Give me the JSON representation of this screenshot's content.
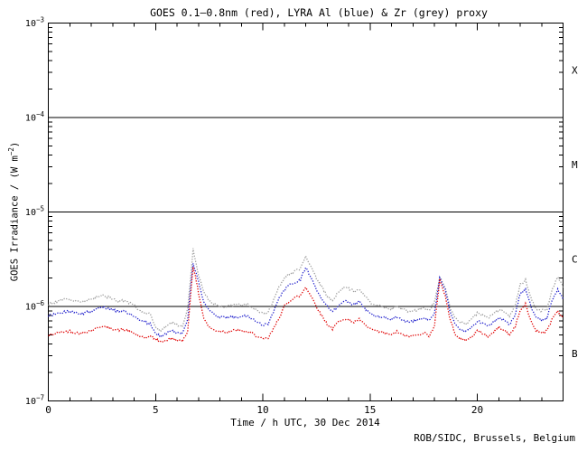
{
  "footer": "ROB/SIDC, Brussels, Belgium",
  "colors": {
    "background": "#ffffff",
    "axis": "#000000",
    "goes_red": "#e00000",
    "lyra_al_blue": "#2020cc",
    "lyra_zr_grey": "#9e9e9e"
  },
  "chart_data": {
    "type": "line",
    "title": "GOES 0.1–0.8nm (red), LYRA Al (blue) & Zr (grey) proxy",
    "xlabel": "Time / h UTC, 30 Dec 2014",
    "ylabel": "GOES Irradiance / (W m^-2)",
    "ylabel_parts": {
      "prefix": "GOES Irradiance / (W m",
      "sup": "−2",
      "suffix": ")"
    },
    "legend": "none (series colors described in title)",
    "grid": "off",
    "x_axis": {
      "min": 0,
      "max": 24,
      "major_ticks": [
        0,
        5,
        10,
        15,
        20
      ],
      "minor_step": 1,
      "unit": "h UTC"
    },
    "y_axis": {
      "scale": "log",
      "min": 1e-07,
      "max": 0.001,
      "tick_exponents": [
        -3,
        -4,
        -5,
        -6,
        -7
      ]
    },
    "hlines": [
      0.0001,
      1e-05,
      1e-06
    ],
    "flare_class_labels": [
      {
        "label": "X",
        "y_value": 0.000316
      },
      {
        "label": "M",
        "y_value": 3.16e-05
      },
      {
        "label": "C",
        "y_value": 3.16e-06
      },
      {
        "label": "B",
        "y_value": 3.16e-07
      }
    ],
    "x_start": 0,
    "x_step_hours": 0.25,
    "values_scale": 1e-07,
    "series": [
      {
        "id": "goes-xray-red",
        "name": "GOES 0.1-0.8nm",
        "color": "#e00000",
        "values": [
          4.9,
          5.1,
          5.3,
          5.4,
          5.5,
          5.3,
          5.2,
          5.4,
          5.6,
          5.9,
          6.2,
          6.0,
          5.8,
          5.6,
          5.7,
          5.5,
          5.2,
          4.8,
          4.6,
          4.9,
          4.5,
          4.2,
          4.4,
          4.6,
          4.4,
          4.3,
          5.5,
          27,
          14,
          7.5,
          6.0,
          5.6,
          5.5,
          5.4,
          5.5,
          5.6,
          5.5,
          5.4,
          5.2,
          4.8,
          4.5,
          4.6,
          5.8,
          7.5,
          10,
          11.5,
          12.5,
          13,
          16,
          13,
          10,
          8.0,
          6.5,
          5.8,
          6.8,
          7.4,
          7.2,
          6.8,
          7.3,
          6.4,
          5.8,
          5.5,
          5.3,
          5.2,
          5.0,
          5.4,
          5.0,
          4.8,
          4.9,
          5.0,
          5.3,
          4.9,
          6.0,
          19.5,
          13,
          7.0,
          5.0,
          4.5,
          4.4,
          4.8,
          5.5,
          5.2,
          4.8,
          5.3,
          6.0,
          5.6,
          5.0,
          6.0,
          9.0,
          10.5,
          7.0,
          5.5,
          5.3,
          5.5,
          7.5,
          9.0,
          7.5
        ]
      },
      {
        "id": "lyra-al-blue",
        "name": "LYRA Al proxy",
        "color": "#2020cc",
        "values": [
          8.0,
          8.2,
          8.5,
          8.8,
          9.0,
          8.6,
          8.3,
          8.6,
          9.0,
          9.5,
          10.0,
          9.6,
          9.2,
          8.8,
          8.9,
          8.5,
          8.0,
          7.2,
          6.8,
          6.6,
          5.2,
          4.8,
          5.2,
          5.6,
          5.3,
          5.2,
          7.5,
          29,
          18,
          11,
          9.0,
          8.2,
          7.8,
          7.6,
          7.7,
          7.8,
          7.8,
          7.9,
          7.4,
          6.8,
          6.3,
          6.6,
          8.8,
          12,
          15,
          17,
          18,
          19,
          26,
          20,
          15,
          12,
          10,
          8.8,
          10,
          11.5,
          11,
          10.5,
          11.5,
          9.5,
          8.5,
          8.0,
          7.7,
          7.5,
          7.3,
          7.8,
          7.2,
          6.9,
          7.0,
          7.2,
          7.6,
          7.0,
          8.5,
          20,
          15,
          8.5,
          6.2,
          5.6,
          5.5,
          6.0,
          7.0,
          6.6,
          6.2,
          6.8,
          7.6,
          7.2,
          6.4,
          8.0,
          13.5,
          15.5,
          10,
          7.5,
          7.2,
          7.5,
          12,
          15,
          12
        ]
      },
      {
        "id": "lyra-zr-grey",
        "name": "LYRA Zr proxy",
        "color": "#9e9e9e",
        "values": [
          10.5,
          11.0,
          11.5,
          12.0,
          12.0,
          11.4,
          11.0,
          11.5,
          12.0,
          12.6,
          13.2,
          12.6,
          12.0,
          11.4,
          11.6,
          11.0,
          10.2,
          9.0,
          8.6,
          8.2,
          5.9,
          5.5,
          6.2,
          6.8,
          6.4,
          6.2,
          9.5,
          40,
          22,
          14,
          11.5,
          10.6,
          10.2,
          10.0,
          10.2,
          10.5,
          10.4,
          10.5,
          9.8,
          9.0,
          8.3,
          8.8,
          11.5,
          16,
          20,
          22,
          23.5,
          25,
          34,
          26,
          20,
          16,
          13,
          11.5,
          14,
          16,
          15.5,
          14.5,
          15.5,
          13,
          11,
          10.3,
          10,
          9.7,
          9.4,
          10,
          9.3,
          8.9,
          9.0,
          9.3,
          9.8,
          9.0,
          11,
          20.5,
          16,
          9.5,
          7.5,
          6.8,
          6.6,
          7.3,
          8.5,
          8.0,
          7.5,
          8.3,
          9.3,
          8.8,
          7.8,
          10,
          17,
          19,
          12.5,
          9.3,
          9.0,
          9.4,
          15,
          21,
          16
        ]
      }
    ]
  }
}
